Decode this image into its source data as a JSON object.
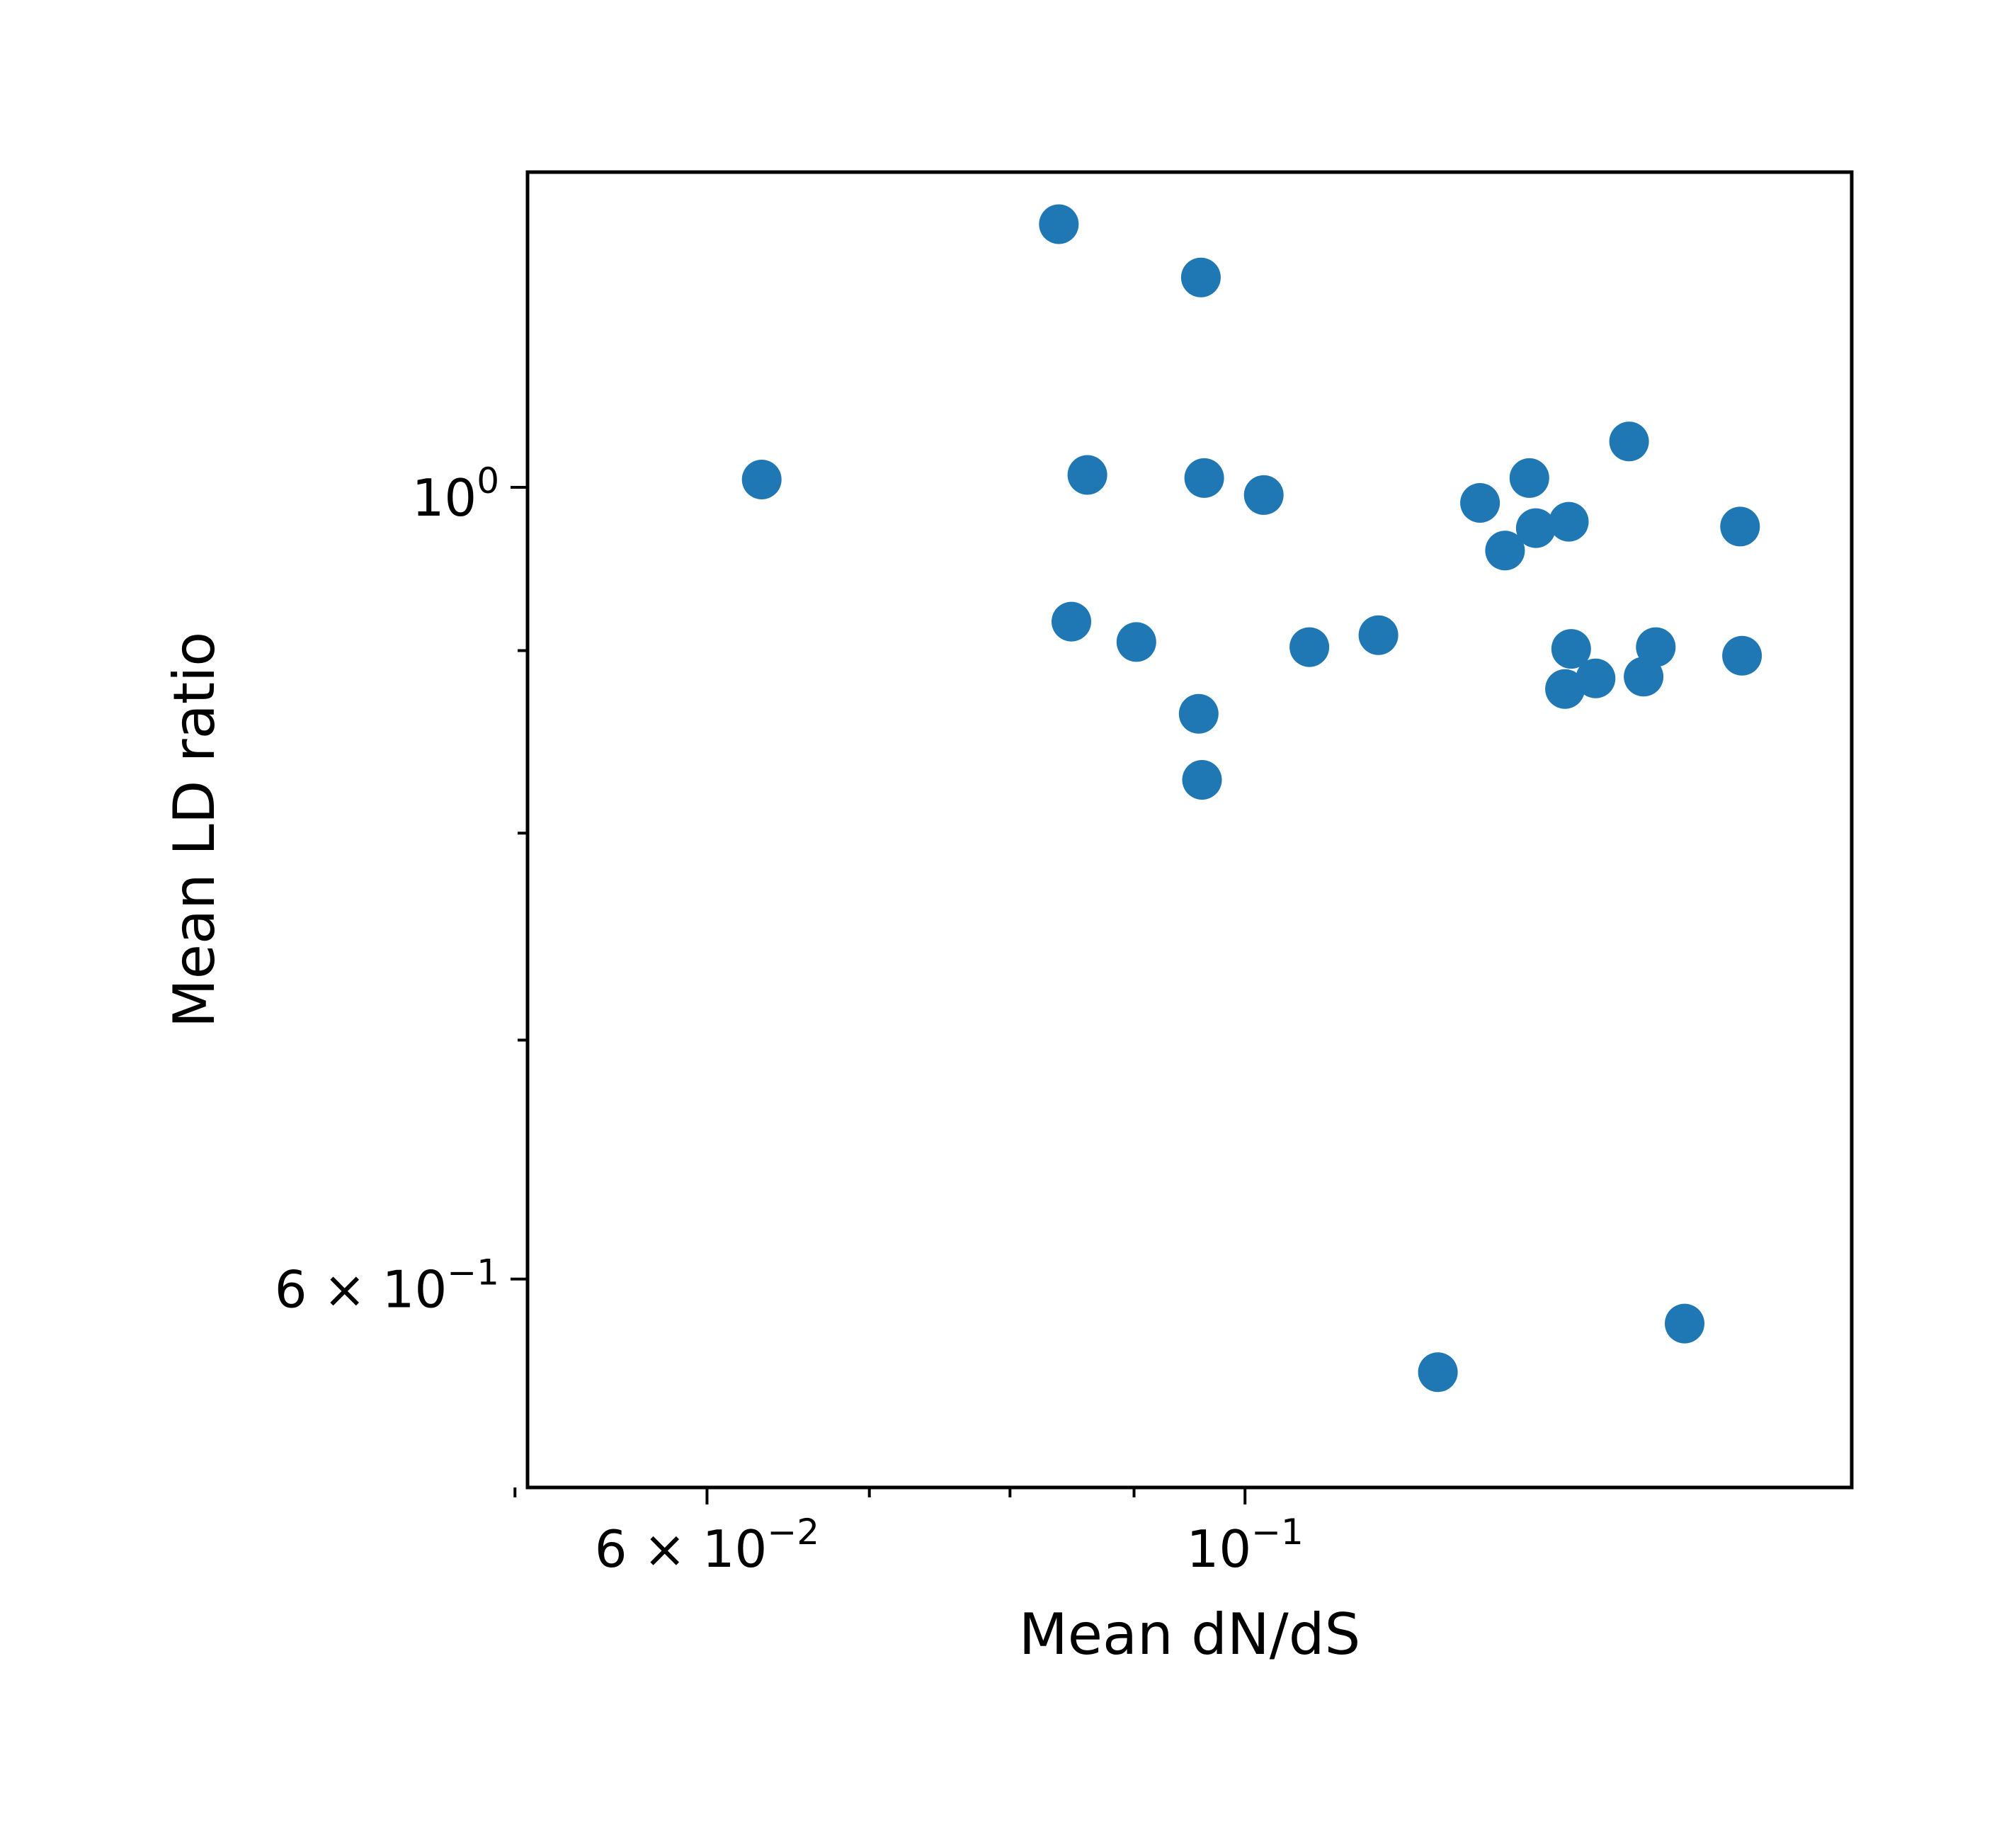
{
  "chart_data": {
    "type": "scatter",
    "xlabel": "Mean dN/dS",
    "ylabel": "Mean LD ratio",
    "x_scale": "log",
    "y_scale": "log",
    "xlim": [
      0.0506,
      0.1779
    ],
    "ylim": [
      0.5245,
      1.2255
    ],
    "grid": false,
    "marker_color": "#1f77b4",
    "x_ticks": [
      {
        "value": 0.06,
        "base": "6 × 10",
        "exp": "−2"
      },
      {
        "value": 0.1,
        "base": "10",
        "exp": "−1"
      }
    ],
    "x_minor_ticks": [
      0.05,
      0.07,
      0.08,
      0.09
    ],
    "y_ticks": [
      {
        "value": 1.0,
        "base": "10",
        "exp": "0"
      },
      {
        "value": 0.6,
        "base": "6 × 10",
        "exp": "−1"
      }
    ],
    "y_minor_ticks": [
      0.7,
      0.8,
      0.9
    ],
    "points": [
      {
        "x": 0.0632,
        "y": 1.005
      },
      {
        "x": 0.0838,
        "y": 1.185
      },
      {
        "x": 0.0848,
        "y": 0.917
      },
      {
        "x": 0.0861,
        "y": 1.008
      },
      {
        "x": 0.0902,
        "y": 0.905
      },
      {
        "x": 0.0959,
        "y": 1.145
      },
      {
        "x": 0.0957,
        "y": 0.864
      },
      {
        "x": 0.096,
        "y": 0.828
      },
      {
        "x": 0.0962,
        "y": 1.006
      },
      {
        "x": 0.1018,
        "y": 0.995
      },
      {
        "x": 0.1063,
        "y": 0.902
      },
      {
        "x": 0.1135,
        "y": 0.909
      },
      {
        "x": 0.1201,
        "y": 0.565
      },
      {
        "x": 0.125,
        "y": 0.99
      },
      {
        "x": 0.128,
        "y": 0.96
      },
      {
        "x": 0.131,
        "y": 1.006
      },
      {
        "x": 0.1318,
        "y": 0.974
      },
      {
        "x": 0.1355,
        "y": 0.878
      },
      {
        "x": 0.136,
        "y": 0.978
      },
      {
        "x": 0.1363,
        "y": 0.901
      },
      {
        "x": 0.1395,
        "y": 0.884
      },
      {
        "x": 0.144,
        "y": 1.03
      },
      {
        "x": 0.146,
        "y": 0.885
      },
      {
        "x": 0.1477,
        "y": 0.902
      },
      {
        "x": 0.1518,
        "y": 0.583
      },
      {
        "x": 0.16,
        "y": 0.975
      },
      {
        "x": 0.1603,
        "y": 0.897
      }
    ]
  }
}
